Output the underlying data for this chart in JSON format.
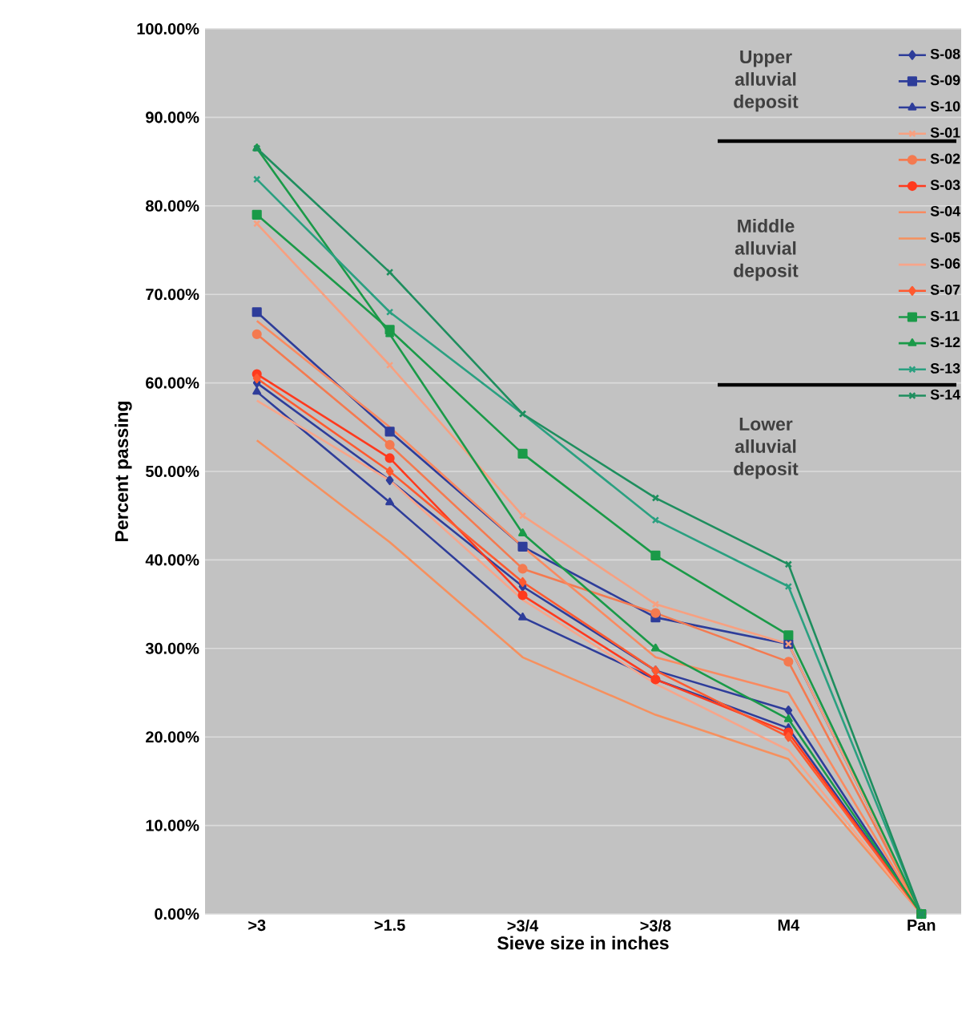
{
  "chart_data": {
    "type": "line",
    "xlabel": "Sieve size in inches",
    "ylabel": "Percent passing",
    "categories": [
      ">3",
      ">1.5",
      ">3/4",
      ">3/8",
      "M4",
      "Pan"
    ],
    "ylim": [
      0,
      100
    ],
    "yticks": [
      {
        "value": 0,
        "label": "0.00%"
      },
      {
        "value": 10,
        "label": "10.00%"
      },
      {
        "value": 20,
        "label": "20.00%"
      },
      {
        "value": 30,
        "label": "30.00%"
      },
      {
        "value": 40,
        "label": "40.00%"
      },
      {
        "value": 50,
        "label": "50.00%"
      },
      {
        "value": 60,
        "label": "60.00%"
      },
      {
        "value": 70,
        "label": "70.00%"
      },
      {
        "value": 80,
        "label": "80.00%"
      },
      {
        "value": 90,
        "label": "90.00%"
      },
      {
        "value": 100,
        "label": "100.00%"
      }
    ],
    "grid": "y",
    "legend": "top right",
    "line_style": "solid",
    "annotations": [
      "Upper alluvial deposit",
      "Middle alluvial deposit",
      "Lower alluvial deposit"
    ],
    "series": [
      {
        "name": "S-08",
        "color": "#2e3d9a",
        "marker": "diamond",
        "values": [
          60,
          49,
          37,
          27.5,
          23,
          0
        ]
      },
      {
        "name": "S-09",
        "color": "#2e3d9a",
        "marker": "square",
        "values": [
          68,
          54.5,
          41.5,
          33.5,
          30.5,
          0
        ]
      },
      {
        "name": "S-10",
        "color": "#2e3d9a",
        "marker": "triangle",
        "values": [
          59,
          46.5,
          33.5,
          26.5,
          21,
          0
        ]
      },
      {
        "name": "S-01",
        "color": "#f7a080",
        "marker": "cross",
        "values": [
          78,
          62,
          45,
          35,
          30.5,
          0
        ]
      },
      {
        "name": "S-02",
        "color": "#f47a50",
        "marker": "circle",
        "values": [
          65.5,
          53,
          39,
          34,
          28.5,
          0
        ]
      },
      {
        "name": "S-03",
        "color": "#ff3a1e",
        "marker": "circle",
        "values": [
          61,
          51.5,
          36,
          26.5,
          20.5,
          0
        ]
      },
      {
        "name": "S-04",
        "color": "#f98a60",
        "marker": "none",
        "values": [
          67,
          55,
          41.5,
          29,
          25,
          0
        ]
      },
      {
        "name": "S-05",
        "color": "#f6905e",
        "marker": "none",
        "values": [
          53.5,
          42,
          29,
          22.5,
          17.5,
          0
        ]
      },
      {
        "name": "S-06",
        "color": "#f7a58a",
        "marker": "none",
        "values": [
          58,
          49,
          35.5,
          26,
          18.5,
          0
        ]
      },
      {
        "name": "S-07",
        "color": "#ff5a30",
        "marker": "diamond",
        "values": [
          60.5,
          50,
          37.5,
          27.5,
          20,
          0
        ]
      },
      {
        "name": "S-11",
        "color": "#1a9a48",
        "marker": "square",
        "values": [
          79,
          66,
          52,
          40.5,
          31.5,
          0
        ]
      },
      {
        "name": "S-12",
        "color": "#1a9a48",
        "marker": "triangle",
        "values": [
          86.5,
          65.5,
          43,
          30,
          22,
          0
        ]
      },
      {
        "name": "S-13",
        "color": "#2aa080",
        "marker": "cross",
        "values": [
          83,
          68,
          56.5,
          44.5,
          37,
          0
        ]
      },
      {
        "name": "S-14",
        "color": "#1e8e5e",
        "marker": "cross",
        "values": [
          86.5,
          72.5,
          56.5,
          47,
          39.5,
          0
        ]
      }
    ]
  }
}
